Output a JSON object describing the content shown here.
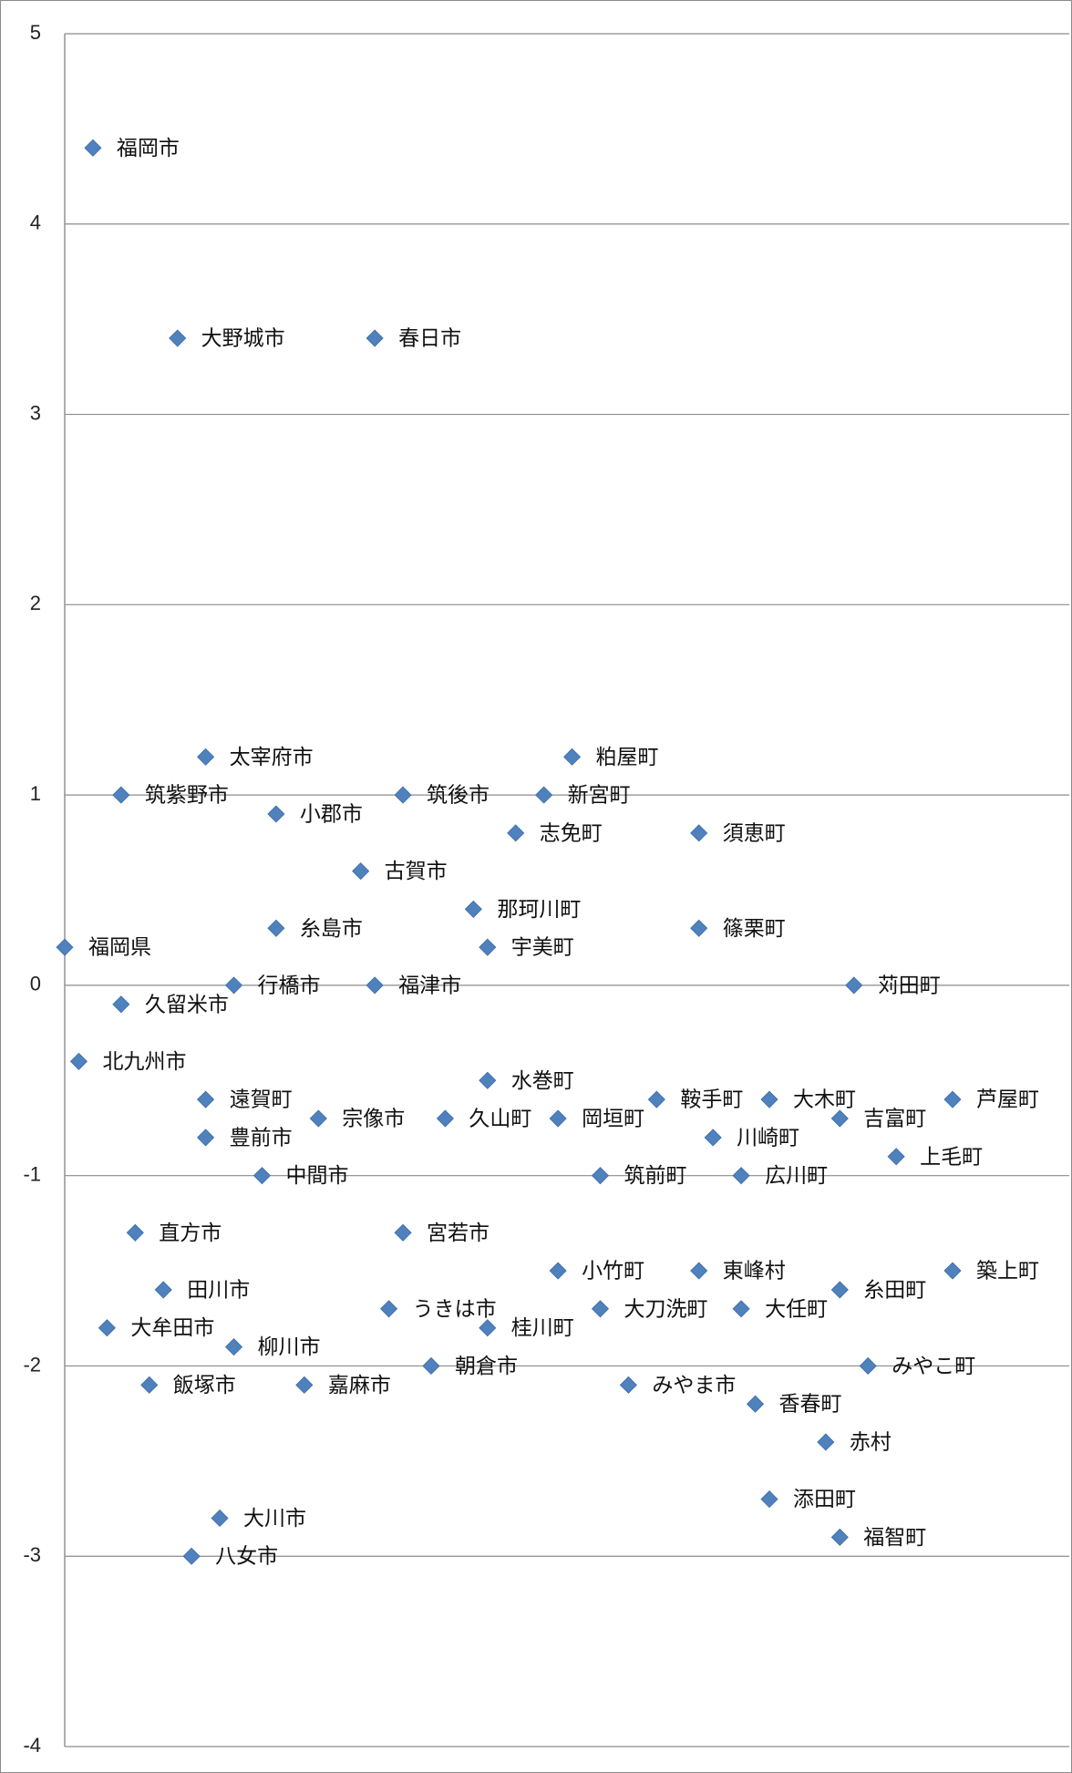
{
  "chart_data": {
    "type": "scatter",
    "title": "",
    "xlabel": "",
    "ylabel": "",
    "ylim": [
      -4,
      5
    ],
    "yticks": [
      5,
      4,
      3,
      2,
      1,
      0,
      -1,
      -2,
      -3,
      -4
    ],
    "grid": true,
    "legend": "none",
    "marker": "diamond",
    "colors": {
      "marker": "#4f81bd",
      "gridline": "#8c8c8c",
      "axis": "#8c8c8c",
      "text": "#111111"
    },
    "points": [
      {
        "label": "福岡市",
        "x": 2,
        "y": 4.4
      },
      {
        "label": "大野城市",
        "x": 8,
        "y": 3.4
      },
      {
        "label": "春日市",
        "x": 22,
        "y": 3.4
      },
      {
        "label": "太宰府市",
        "x": 10,
        "y": 1.2
      },
      {
        "label": "粕屋町",
        "x": 36,
        "y": 1.2
      },
      {
        "label": "筑紫野市",
        "x": 4,
        "y": 1.0
      },
      {
        "label": "筑後市",
        "x": 24,
        "y": 1.0
      },
      {
        "label": "新宮町",
        "x": 34,
        "y": 1.0
      },
      {
        "label": "小郡市",
        "x": 15,
        "y": 0.9
      },
      {
        "label": "志免町",
        "x": 32,
        "y": 0.8
      },
      {
        "label": "須恵町",
        "x": 45,
        "y": 0.8
      },
      {
        "label": "古賀市",
        "x": 21,
        "y": 0.6
      },
      {
        "label": "那珂川町",
        "x": 29,
        "y": 0.4
      },
      {
        "label": "糸島市",
        "x": 15,
        "y": 0.3
      },
      {
        "label": "篠栗町",
        "x": 45,
        "y": 0.3
      },
      {
        "label": "福岡県",
        "x": 0,
        "y": 0.2
      },
      {
        "label": "宇美町",
        "x": 30,
        "y": 0.2
      },
      {
        "label": "行橋市",
        "x": 12,
        "y": 0.0
      },
      {
        "label": "福津市",
        "x": 22,
        "y": 0.0
      },
      {
        "label": "苅田町",
        "x": 56,
        "y": 0.0
      },
      {
        "label": "久留米市",
        "x": 4,
        "y": -0.1
      },
      {
        "label": "北九州市",
        "x": 1,
        "y": -0.4
      },
      {
        "label": "水巻町",
        "x": 30,
        "y": -0.5
      },
      {
        "label": "遠賀町",
        "x": 10,
        "y": -0.6
      },
      {
        "label": "鞍手町",
        "x": 42,
        "y": -0.6
      },
      {
        "label": "大木町",
        "x": 50,
        "y": -0.6
      },
      {
        "label": "芦屋町",
        "x": 63,
        "y": -0.6
      },
      {
        "label": "宗像市",
        "x": 18,
        "y": -0.7
      },
      {
        "label": "久山町",
        "x": 27,
        "y": -0.7
      },
      {
        "label": "岡垣町",
        "x": 35,
        "y": -0.7
      },
      {
        "label": "吉富町",
        "x": 55,
        "y": -0.7
      },
      {
        "label": "豊前市",
        "x": 10,
        "y": -0.8
      },
      {
        "label": "川崎町",
        "x": 46,
        "y": -0.8
      },
      {
        "label": "上毛町",
        "x": 59,
        "y": -0.9
      },
      {
        "label": "中間市",
        "x": 14,
        "y": -1.0
      },
      {
        "label": "筑前町",
        "x": 38,
        "y": -1.0
      },
      {
        "label": "広川町",
        "x": 48,
        "y": -1.0
      },
      {
        "label": "直方市",
        "x": 5,
        "y": -1.3
      },
      {
        "label": "宮若市",
        "x": 24,
        "y": -1.3
      },
      {
        "label": "小竹町",
        "x": 35,
        "y": -1.5
      },
      {
        "label": "東峰村",
        "x": 45,
        "y": -1.5
      },
      {
        "label": "築上町",
        "x": 63,
        "y": -1.5
      },
      {
        "label": "田川市",
        "x": 7,
        "y": -1.6
      },
      {
        "label": "糸田町",
        "x": 55,
        "y": -1.6
      },
      {
        "label": "うきは市",
        "x": 23,
        "y": -1.7
      },
      {
        "label": "大刀洗町",
        "x": 38,
        "y": -1.7
      },
      {
        "label": "大任町",
        "x": 48,
        "y": -1.7
      },
      {
        "label": "大牟田市",
        "x": 3,
        "y": -1.8
      },
      {
        "label": "桂川町",
        "x": 30,
        "y": -1.8
      },
      {
        "label": "柳川市",
        "x": 12,
        "y": -1.9
      },
      {
        "label": "朝倉市",
        "x": 26,
        "y": -2.0
      },
      {
        "label": "みやこ町",
        "x": 57,
        "y": -2.0
      },
      {
        "label": "飯塚市",
        "x": 6,
        "y": -2.1
      },
      {
        "label": "嘉麻市",
        "x": 17,
        "y": -2.1
      },
      {
        "label": "みやま市",
        "x": 40,
        "y": -2.1
      },
      {
        "label": "香春町",
        "x": 49,
        "y": -2.2
      },
      {
        "label": "赤村",
        "x": 54,
        "y": -2.4
      },
      {
        "label": "添田町",
        "x": 50,
        "y": -2.7
      },
      {
        "label": "福智町",
        "x": 55,
        "y": -2.9
      },
      {
        "label": "大川市",
        "x": 11,
        "y": -2.8
      },
      {
        "label": "八女市",
        "x": 9,
        "y": -3.0
      }
    ]
  }
}
